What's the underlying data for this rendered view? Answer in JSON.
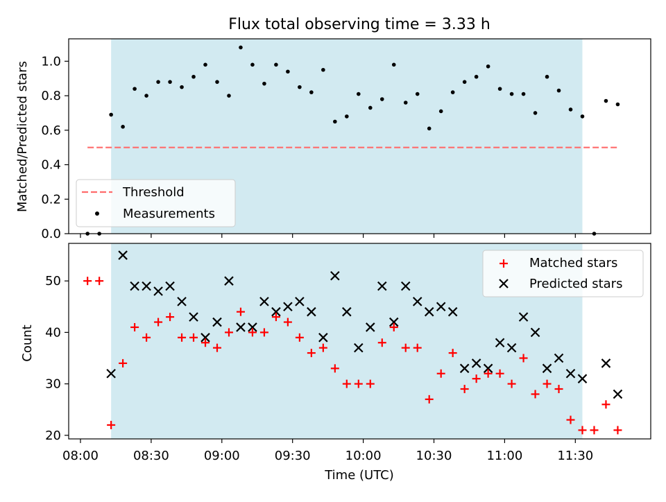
{
  "chart_data": [
    {
      "type": "scatter",
      "title": "Flux total observing time = 3.33 h",
      "ylabel": "Matched/Predicted stars",
      "ylim": [
        0.0,
        1.13
      ],
      "yticks": [
        "0.0",
        "0.2",
        "0.4",
        "0.6",
        "0.8",
        "1.0"
      ],
      "shaded_span": [
        "08:13",
        "11:33"
      ],
      "shade_color": "#add8e6",
      "series": [
        {
          "name": "Threshold",
          "style": "dashed-line",
          "color": "#ff6b6b",
          "x": [
            "08:03",
            "11:48"
          ],
          "y": [
            0.5,
            0.5
          ]
        },
        {
          "name": "Measurements",
          "style": "dot",
          "color": "#000000",
          "x": [
            "08:03",
            "08:08",
            "08:13",
            "08:18",
            "08:23",
            "08:28",
            "08:33",
            "08:38",
            "08:43",
            "08:48",
            "08:53",
            "08:58",
            "09:03",
            "09:08",
            "09:13",
            "09:18",
            "09:23",
            "09:28",
            "09:33",
            "09:38",
            "09:43",
            "09:48",
            "09:53",
            "09:58",
            "10:03",
            "10:08",
            "10:13",
            "10:18",
            "10:23",
            "10:28",
            "10:33",
            "10:38",
            "10:43",
            "10:48",
            "10:53",
            "10:58",
            "11:03",
            "11:08",
            "11:13",
            "11:18",
            "11:23",
            "11:28",
            "11:33",
            "11:38",
            "11:43",
            "11:48"
          ],
          "y": [
            0.0,
            0.0,
            0.69,
            0.62,
            0.84,
            0.8,
            0.88,
            0.88,
            0.85,
            0.91,
            0.98,
            0.88,
            0.8,
            1.08,
            0.98,
            0.87,
            0.98,
            0.94,
            0.85,
            0.82,
            0.95,
            0.65,
            0.68,
            0.81,
            0.73,
            0.78,
            0.98,
            0.76,
            0.81,
            0.61,
            0.71,
            0.82,
            0.88,
            0.91,
            0.97,
            0.84,
            0.81,
            0.81,
            0.7,
            0.91,
            0.83,
            0.72,
            0.68,
            0.0,
            0.77,
            0.75
          ]
        }
      ],
      "legend": "lower-left"
    },
    {
      "type": "scatter",
      "xlabel": "Time (UTC)",
      "ylabel": "Count",
      "ylim": [
        19.3,
        57.3
      ],
      "yticks": [
        "20",
        "30",
        "40",
        "50"
      ],
      "xlim": [
        "07:55",
        "12:02"
      ],
      "xticks": [
        "08:00",
        "08:30",
        "09:00",
        "09:30",
        "10:00",
        "10:30",
        "11:00",
        "11:30"
      ],
      "shaded_span": [
        "08:13",
        "11:33"
      ],
      "series": [
        {
          "name": "Matched stars",
          "style": "plus",
          "color": "#ff0000",
          "x": [
            "08:03",
            "08:08",
            "08:13",
            "08:18",
            "08:23",
            "08:28",
            "08:33",
            "08:38",
            "08:43",
            "08:48",
            "08:53",
            "08:58",
            "09:03",
            "09:08",
            "09:13",
            "09:18",
            "09:23",
            "09:28",
            "09:33",
            "09:38",
            "09:43",
            "09:48",
            "09:53",
            "09:58",
            "10:03",
            "10:08",
            "10:13",
            "10:18",
            "10:23",
            "10:28",
            "10:33",
            "10:38",
            "10:43",
            "10:48",
            "10:53",
            "10:58",
            "11:03",
            "11:08",
            "11:13",
            "11:18",
            "11:23",
            "11:28",
            "11:33",
            "11:38",
            "11:43",
            "11:48"
          ],
          "y": [
            50,
            50,
            22,
            34,
            41,
            39,
            42,
            43,
            39,
            39,
            38,
            37,
            40,
            44,
            40,
            40,
            43,
            42,
            39,
            36,
            37,
            33,
            30,
            30,
            30,
            38,
            41,
            37,
            37,
            27,
            32,
            36,
            29,
            31,
            32,
            32,
            30,
            35,
            28,
            30,
            29,
            23,
            21,
            21,
            26,
            21
          ]
        },
        {
          "name": "Predicted stars",
          "style": "x",
          "color": "#000000",
          "x": [
            "08:13",
            "08:18",
            "08:23",
            "08:28",
            "08:33",
            "08:38",
            "08:43",
            "08:48",
            "08:53",
            "08:58",
            "09:03",
            "09:08",
            "09:13",
            "09:18",
            "09:23",
            "09:28",
            "09:33",
            "09:38",
            "09:43",
            "09:48",
            "09:53",
            "09:58",
            "10:03",
            "10:08",
            "10:13",
            "10:18",
            "10:23",
            "10:28",
            "10:33",
            "10:38",
            "10:43",
            "10:48",
            "10:53",
            "10:58",
            "11:03",
            "11:08",
            "11:13",
            "11:18",
            "11:23",
            "11:28",
            "11:33",
            "11:43",
            "11:48"
          ],
          "y": [
            32,
            55,
            49,
            49,
            48,
            49,
            46,
            43,
            39,
            42,
            50,
            41,
            41,
            46,
            44,
            45,
            46,
            44,
            39,
            51,
            44,
            37,
            41,
            49,
            42,
            49,
            46,
            44,
            45,
            44,
            33,
            34,
            33,
            38,
            37,
            43,
            40,
            33,
            35,
            32,
            31,
            34,
            28
          ]
        }
      ],
      "legend": "upper-right"
    }
  ]
}
